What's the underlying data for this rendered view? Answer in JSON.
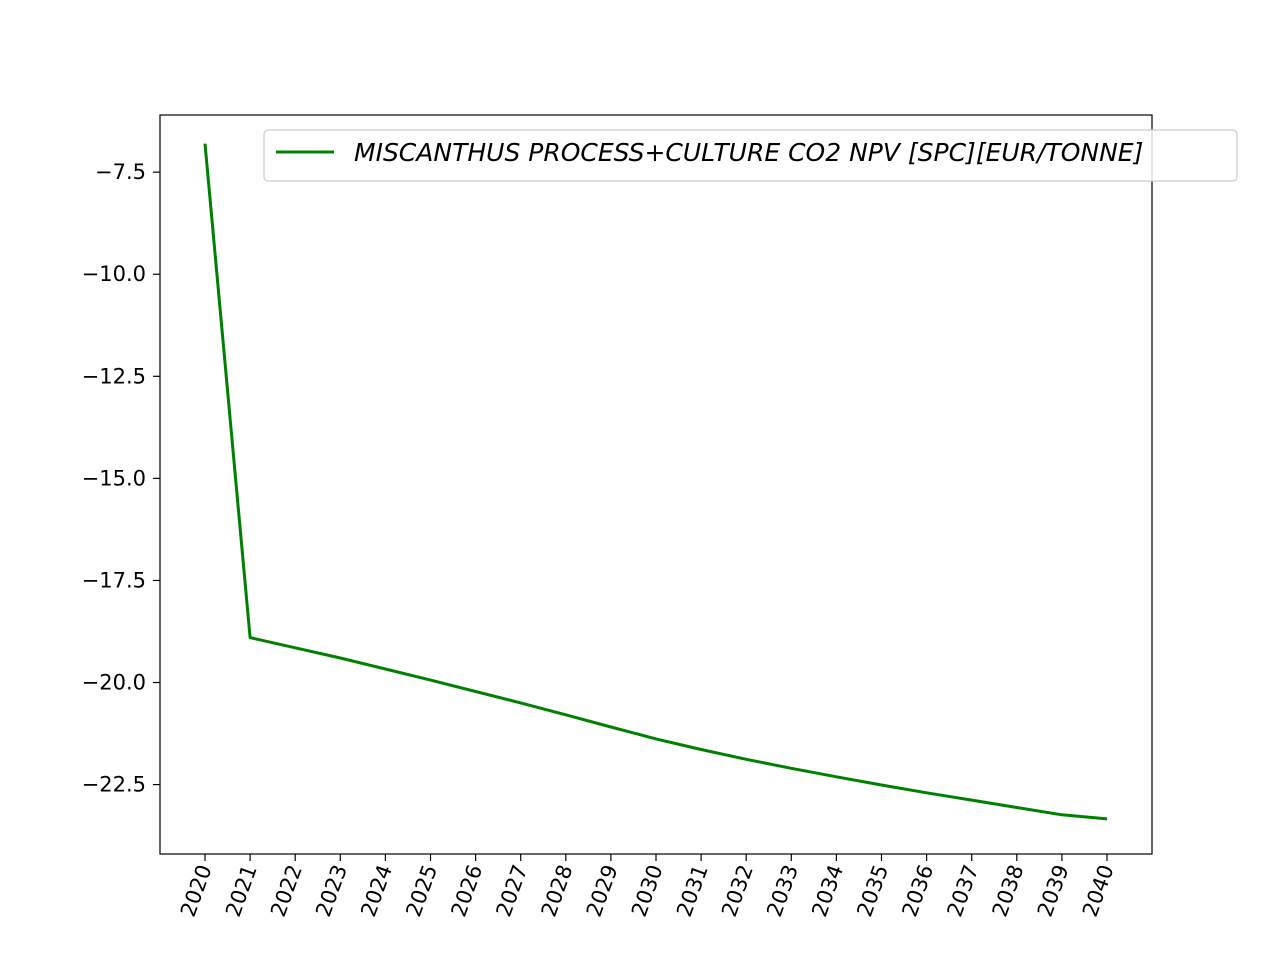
{
  "chart_data": {
    "type": "line",
    "title": "",
    "xlabel": "",
    "ylabel": "",
    "categories": [
      "2020",
      "2021",
      "2022",
      "2023",
      "2024",
      "2025",
      "2026",
      "2027",
      "2028",
      "2029",
      "2030",
      "2031",
      "2032",
      "2033",
      "2034",
      "2035",
      "2036",
      "2037",
      "2038",
      "2039",
      "2040"
    ],
    "series": [
      {
        "name": "MISCANTHUS PROCESS+CULTURE CO2 NPV [SPC][EUR/TONNE]",
        "color": "#008000",
        "values": [
          -6.8,
          -18.9,
          -19.15,
          -19.4,
          -19.67,
          -19.94,
          -20.22,
          -20.5,
          -20.79,
          -21.09,
          -21.38,
          -21.64,
          -21.88,
          -22.1,
          -22.31,
          -22.51,
          -22.7,
          -22.88,
          -23.06,
          -23.24,
          -23.34
        ]
      }
    ],
    "ylim": [
      -24.2,
      -6.1
    ],
    "yticks": [
      -7.5,
      -10.0,
      -12.5,
      -15.0,
      -17.5,
      -20.0,
      -22.5
    ],
    "ytick_labels": [
      "−7.5",
      "−10.0",
      "−12.5",
      "−15.0",
      "−17.5",
      "−20.0",
      "−22.5"
    ],
    "grid": false,
    "legend_position": "top-right"
  }
}
